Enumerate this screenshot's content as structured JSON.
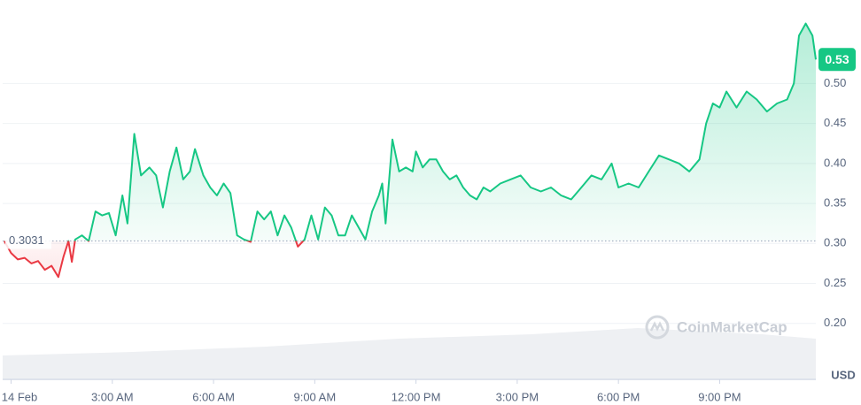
{
  "chart_data": {
    "type": "line",
    "x": [
      -0.2,
      0,
      0.2,
      0.4,
      0.6,
      0.8,
      1.0,
      1.2,
      1.4,
      1.55,
      1.7,
      1.8,
      1.9,
      2.1,
      2.3,
      2.5,
      2.7,
      2.9,
      3.1,
      3.3,
      3.45,
      3.65,
      3.85,
      4.1,
      4.3,
      4.5,
      4.7,
      4.9,
      5.1,
      5.3,
      5.45,
      5.7,
      5.9,
      6.1,
      6.3,
      6.5,
      6.7,
      6.9,
      7.1,
      7.3,
      7.5,
      7.7,
      7.9,
      8.1,
      8.3,
      8.5,
      8.7,
      8.9,
      9.1,
      9.3,
      9.5,
      9.7,
      9.9,
      10.1,
      10.3,
      10.5,
      10.7,
      10.9,
      11.0,
      11.1,
      11.3,
      11.5,
      11.7,
      11.9,
      12.0,
      12.2,
      12.4,
      12.6,
      12.8,
      13.0,
      13.2,
      13.4,
      13.6,
      13.8,
      14.0,
      14.2,
      14.5,
      14.8,
      15.1,
      15.4,
      15.7,
      16.0,
      16.3,
      16.6,
      16.9,
      17.2,
      17.5,
      17.8,
      18.0,
      18.3,
      18.6,
      18.9,
      19.2,
      19.5,
      19.8,
      20.1,
      20.4,
      20.6,
      20.8,
      21.0,
      21.2,
      21.5,
      21.8,
      22.1,
      22.4,
      22.7,
      23.0,
      23.2,
      23.35,
      23.55,
      23.75,
      23.85
    ],
    "values": [
      0.303,
      0.288,
      0.28,
      0.282,
      0.275,
      0.278,
      0.267,
      0.272,
      0.258,
      0.283,
      0.303,
      0.277,
      0.305,
      0.31,
      0.303,
      0.34,
      0.335,
      0.338,
      0.31,
      0.36,
      0.325,
      0.437,
      0.385,
      0.395,
      0.385,
      0.345,
      0.39,
      0.42,
      0.38,
      0.39,
      0.418,
      0.385,
      0.37,
      0.36,
      0.375,
      0.363,
      0.31,
      0.305,
      0.302,
      0.34,
      0.33,
      0.34,
      0.31,
      0.335,
      0.32,
      0.296,
      0.305,
      0.335,
      0.305,
      0.345,
      0.335,
      0.31,
      0.31,
      0.335,
      0.32,
      0.305,
      0.34,
      0.36,
      0.375,
      0.325,
      0.43,
      0.39,
      0.395,
      0.39,
      0.415,
      0.395,
      0.405,
      0.405,
      0.39,
      0.38,
      0.385,
      0.37,
      0.36,
      0.355,
      0.37,
      0.365,
      0.375,
      0.38,
      0.385,
      0.37,
      0.365,
      0.37,
      0.36,
      0.355,
      0.37,
      0.385,
      0.38,
      0.4,
      0.37,
      0.375,
      0.37,
      0.39,
      0.41,
      0.405,
      0.4,
      0.39,
      0.405,
      0.45,
      0.475,
      0.47,
      0.49,
      0.47,
      0.49,
      0.48,
      0.465,
      0.475,
      0.48,
      0.5,
      0.56,
      0.575,
      0.56,
      0.53
    ],
    "color_up": "#16c784",
    "color_down": "#ea3943",
    "baseline": 0.3031,
    "last_price": 0.53,
    "y_unit": "USD",
    "watermark": "CoinMarketCap",
    "xlim": [
      -0.25,
      23.85
    ],
    "xticks": [
      {
        "value": 0,
        "label": "14 Feb"
      },
      {
        "value": 3,
        "label": "3:00 AM"
      },
      {
        "value": 6,
        "label": "6:00 AM"
      },
      {
        "value": 9,
        "label": "9:00 AM"
      },
      {
        "value": 12,
        "label": "12:00 PM"
      },
      {
        "value": 15,
        "label": "3:00 PM"
      },
      {
        "value": 18,
        "label": "6:00 PM"
      },
      {
        "value": 21,
        "label": "9:00 PM"
      }
    ],
    "ylim": [
      0.13,
      0.6
    ],
    "yticks": [
      {
        "value": 0.2,
        "label": "0.20"
      },
      0.25,
      {
        "value": 0.3,
        "label": "0.30"
      },
      0.35,
      {
        "value": 0.4,
        "label": "0.40"
      },
      0.45,
      {
        "value": 0.5,
        "label": "0.50"
      }
    ],
    "grid": true
  }
}
